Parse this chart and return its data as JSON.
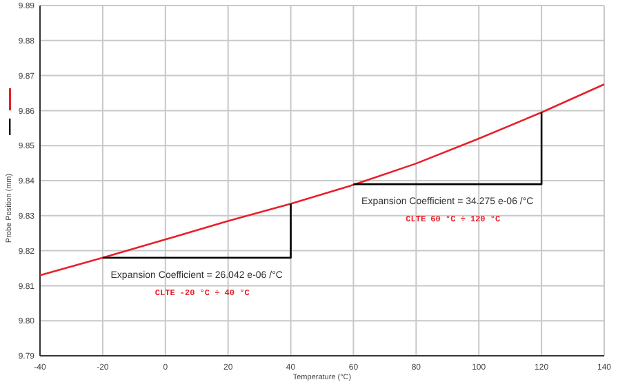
{
  "chart_data": {
    "type": "line",
    "xlabel": "Temperature (°C)",
    "ylabel": "Probe Position (mm)",
    "xlim": [
      -40,
      140
    ],
    "xticks": [
      -40,
      -20,
      0,
      20,
      40,
      60,
      80,
      100,
      120,
      140
    ],
    "ylim": [
      9.79,
      9.89
    ],
    "yticks": [
      9.79,
      {
        "value": 9.8,
        "label": "9.80"
      },
      9.81,
      9.82,
      9.83,
      9.84,
      9.85,
      9.86,
      9.87,
      9.88,
      9.89
    ],
    "grid": true,
    "series": [
      {
        "color": "#e8202a",
        "x": [
          -40,
          -20,
          0,
          20,
          40,
          60,
          80,
          100,
          120,
          140
        ],
        "values": [
          9.813,
          9.818,
          9.8232,
          9.8285,
          9.8334,
          9.8388,
          9.8449,
          9.852,
          9.8595,
          9.8675
        ]
      },
      {
        "color": "#000000",
        "x": [
          -20,
          40,
          40
        ],
        "values": [
          9.818,
          9.818,
          9.8334
        ]
      },
      {
        "color": "#000000",
        "x": [
          60,
          120,
          120
        ],
        "values": [
          9.839,
          9.839,
          9.8595
        ]
      }
    ],
    "annotations": [
      "Expansion Coefficient = 26.042 e-06 /°C",
      "CLTE -20 °C ÷ 40 °C",
      "Expansion Coefficient = 34.275 e-06 /°C",
      "CLTE 60 °C ÷ 120 °C"
    ]
  }
}
